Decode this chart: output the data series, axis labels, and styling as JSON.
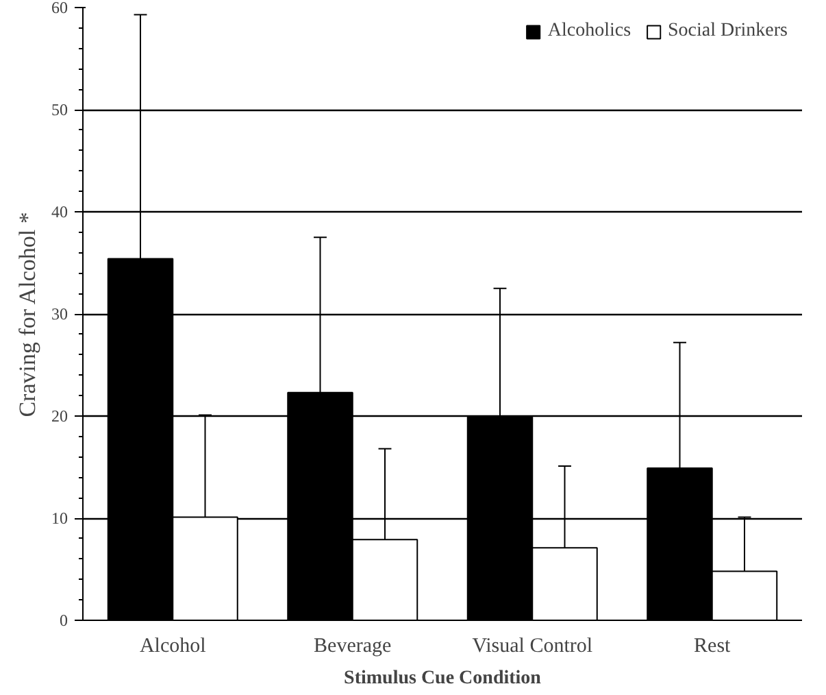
{
  "chart_data": {
    "type": "bar",
    "xlabel": "Stimulus Cue Condition",
    "ylabel": "Craving for Alcohol *",
    "categories": [
      "Alcohol",
      "Beverage",
      "Visual Control",
      "Rest"
    ],
    "series": [
      {
        "name": "Alcoholics",
        "color": "#000000",
        "values": [
          35.4,
          22.3,
          19.9,
          14.9
        ],
        "errors": [
          [
            35.4,
            59.3
          ],
          [
            22.3,
            37.5
          ],
          [
            19.9,
            32.5
          ],
          [
            14.9,
            27.2
          ]
        ]
      },
      {
        "name": "Social Drinkers",
        "color": "#ffffff",
        "values": [
          10.1,
          7.9,
          7.1,
          4.8
        ],
        "errors": [
          [
            10.1,
            20.1
          ],
          [
            7.9,
            16.8
          ],
          [
            7.1,
            15.1
          ],
          [
            4.8,
            10.1
          ]
        ]
      }
    ],
    "ylim": [
      0,
      60
    ],
    "yticks": [
      0,
      10,
      20,
      30,
      40,
      50,
      60
    ],
    "grid": "y",
    "legend": "top right"
  }
}
